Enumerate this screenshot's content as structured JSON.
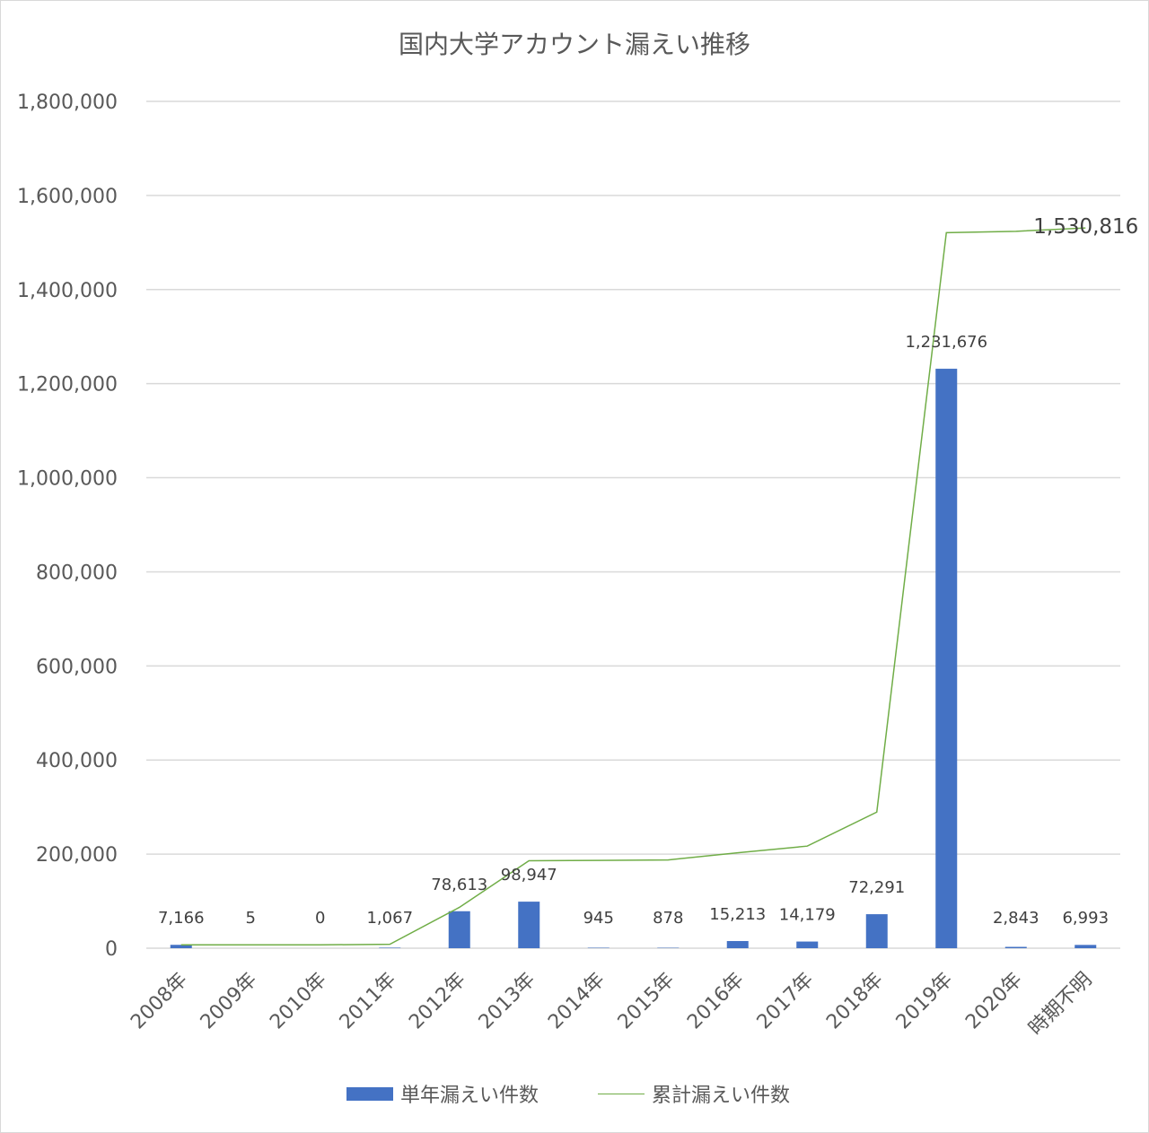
{
  "chart_data": {
    "type": "bar",
    "title": "国内大学アカウント漏えい推移",
    "categories": [
      "2008年",
      "2009年",
      "2010年",
      "2011年",
      "2012年",
      "2013年",
      "2014年",
      "2015年",
      "2016年",
      "2017年",
      "2018年",
      "2019年",
      "2020年",
      "時期不明"
    ],
    "series": [
      {
        "name": "単年漏えい件数",
        "type": "bar",
        "color": "#4472c4",
        "values": [
          7166,
          5,
          0,
          1067,
          78613,
          98947,
          945,
          878,
          15213,
          14179,
          72291,
          1231676,
          2843,
          6993
        ],
        "data_labels": [
          "7,166",
          "5",
          "0",
          "1,067",
          "78,613",
          "98,947",
          "945",
          "878",
          "15,213",
          "14,179",
          "72,291",
          "1,231,676",
          "2,843",
          "6,993"
        ]
      },
      {
        "name": "累計漏えい件数",
        "type": "line",
        "color": "#70ad47",
        "values": [
          7166,
          7171,
          7171,
          8238,
          86851,
          185798,
          186743,
          187621,
          202834,
          217013,
          289304,
          1520980,
          1523823,
          1530816
        ],
        "end_label": "1,530,816"
      }
    ],
    "y_axis": {
      "min": 0,
      "max": 1800000,
      "step": 200000,
      "tick_labels": [
        "0",
        "200,000",
        "400,000",
        "600,000",
        "800,000",
        "1,000,000",
        "1,200,000",
        "1,400,000",
        "1,600,000",
        "1,800,000"
      ]
    },
    "grid": true,
    "legend_position": "bottom"
  }
}
